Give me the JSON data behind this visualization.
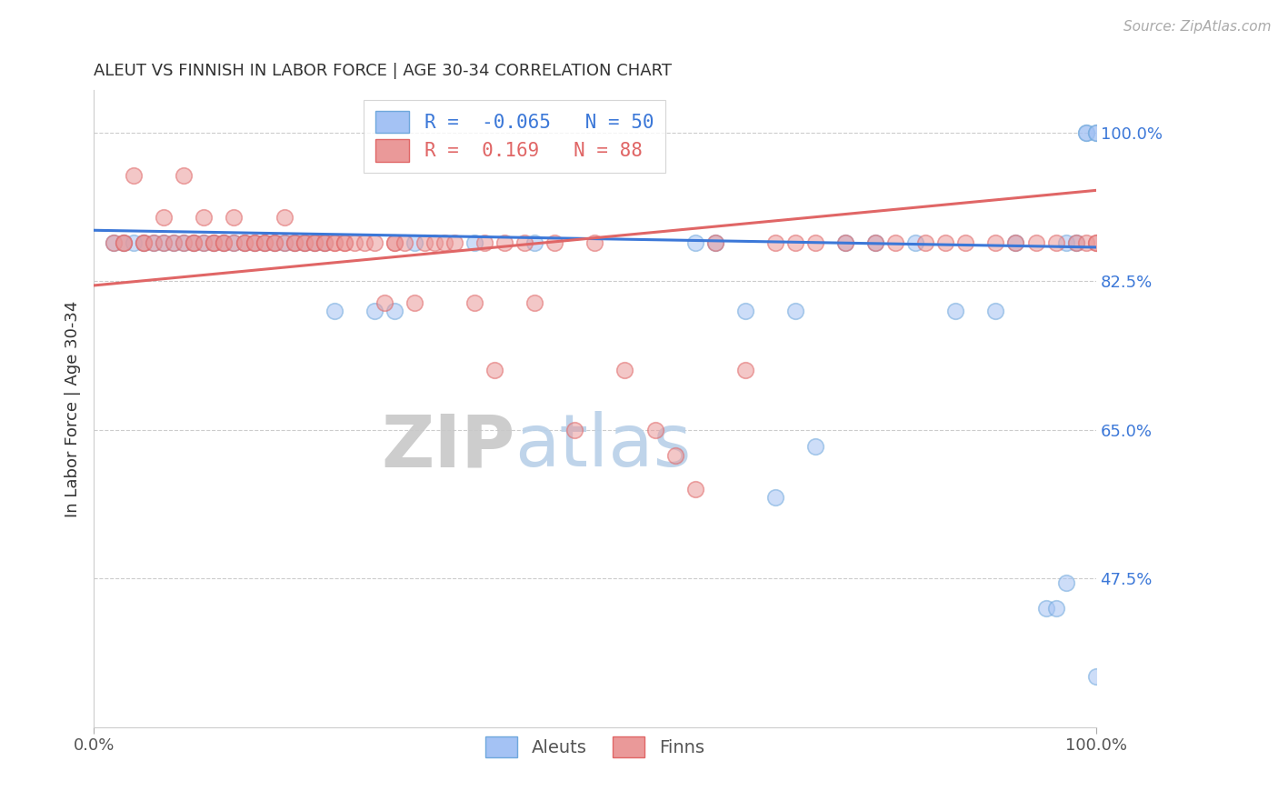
{
  "title": "ALEUT VS FINNISH IN LABOR FORCE | AGE 30-34 CORRELATION CHART",
  "source_text": "Source: ZipAtlas.com",
  "ylabel": "In Labor Force | Age 30-34",
  "xlim": [
    0.0,
    1.0
  ],
  "ylim": [
    0.3,
    1.05
  ],
  "yticks": [
    1.0,
    0.825,
    0.65,
    0.475
  ],
  "ytick_labels": [
    "100.0%",
    "82.5%",
    "65.0%",
    "47.5%"
  ],
  "xtick_labels": [
    "0.0%",
    "100.0%"
  ],
  "xticks": [
    0.0,
    1.0
  ],
  "aleut_color": "#a4c2f4",
  "finn_color": "#ea9999",
  "aleut_edge_color": "#6fa8dc",
  "finn_edge_color": "#e06666",
  "aleut_line_color": "#3c78d8",
  "finn_line_color": "#e06666",
  "aleut_R": -0.065,
  "aleut_N": 50,
  "finn_R": 0.169,
  "finn_N": 88,
  "watermark_zip": "ZIP",
  "watermark_atlas": "atlas",
  "legend_aleut_label": "Aleuts",
  "legend_finn_label": "Finns",
  "background_color": "#ffffff",
  "grid_color": "#cccccc",
  "aleut_x": [
    0.02,
    0.03,
    0.04,
    0.05,
    0.06,
    0.07,
    0.08,
    0.09,
    0.1,
    0.11,
    0.12,
    0.13,
    0.14,
    0.15,
    0.16,
    0.17,
    0.18,
    0.19,
    0.2,
    0.21,
    0.22,
    0.23,
    0.24,
    0.28,
    0.3,
    0.32,
    0.38,
    0.44,
    0.6,
    0.62,
    0.65,
    0.7,
    0.75,
    0.78,
    0.82,
    0.86,
    0.9,
    0.92,
    0.95,
    0.96,
    0.97,
    0.97,
    0.98,
    0.99,
    0.99,
    1.0,
    1.0,
    1.0,
    0.68,
    0.72
  ],
  "aleut_y": [
    0.87,
    0.87,
    0.87,
    0.87,
    0.87,
    0.87,
    0.87,
    0.87,
    0.87,
    0.87,
    0.87,
    0.87,
    0.87,
    0.87,
    0.87,
    0.87,
    0.87,
    0.87,
    0.87,
    0.87,
    0.87,
    0.87,
    0.79,
    0.79,
    0.79,
    0.87,
    0.87,
    0.87,
    0.87,
    0.87,
    0.79,
    0.79,
    0.87,
    0.87,
    0.87,
    0.79,
    0.79,
    0.87,
    0.44,
    0.44,
    0.47,
    0.87,
    0.87,
    1.0,
    1.0,
    1.0,
    1.0,
    0.36,
    0.57,
    0.63
  ],
  "finn_x": [
    0.02,
    0.03,
    0.03,
    0.04,
    0.05,
    0.05,
    0.06,
    0.07,
    0.07,
    0.08,
    0.09,
    0.09,
    0.1,
    0.1,
    0.11,
    0.11,
    0.12,
    0.12,
    0.13,
    0.13,
    0.14,
    0.14,
    0.15,
    0.15,
    0.16,
    0.16,
    0.17,
    0.17,
    0.18,
    0.18,
    0.19,
    0.19,
    0.2,
    0.2,
    0.21,
    0.21,
    0.22,
    0.22,
    0.23,
    0.23,
    0.24,
    0.24,
    0.25,
    0.25,
    0.26,
    0.27,
    0.28,
    0.29,
    0.3,
    0.3,
    0.31,
    0.32,
    0.33,
    0.34,
    0.35,
    0.36,
    0.38,
    0.39,
    0.4,
    0.41,
    0.43,
    0.44,
    0.46,
    0.48,
    0.5,
    0.53,
    0.56,
    0.58,
    0.6,
    0.62,
    0.65,
    0.68,
    0.7,
    0.72,
    0.75,
    0.78,
    0.8,
    0.83,
    0.85,
    0.87,
    0.9,
    0.92,
    0.94,
    0.96,
    0.98,
    0.99,
    1.0,
    1.0
  ],
  "finn_y": [
    0.87,
    0.87,
    0.87,
    0.95,
    0.87,
    0.87,
    0.87,
    0.87,
    0.9,
    0.87,
    0.87,
    0.95,
    0.87,
    0.87,
    0.87,
    0.9,
    0.87,
    0.87,
    0.87,
    0.87,
    0.87,
    0.9,
    0.87,
    0.87,
    0.87,
    0.87,
    0.87,
    0.87,
    0.87,
    0.87,
    0.87,
    0.9,
    0.87,
    0.87,
    0.87,
    0.87,
    0.87,
    0.87,
    0.87,
    0.87,
    0.87,
    0.87,
    0.87,
    0.87,
    0.87,
    0.87,
    0.87,
    0.8,
    0.87,
    0.87,
    0.87,
    0.8,
    0.87,
    0.87,
    0.87,
    0.87,
    0.8,
    0.87,
    0.72,
    0.87,
    0.87,
    0.8,
    0.87,
    0.65,
    0.87,
    0.72,
    0.65,
    0.62,
    0.58,
    0.87,
    0.72,
    0.87,
    0.87,
    0.87,
    0.87,
    0.87,
    0.87,
    0.87,
    0.87,
    0.87,
    0.87,
    0.87,
    0.87,
    0.87,
    0.87,
    0.87,
    0.87,
    0.87
  ]
}
